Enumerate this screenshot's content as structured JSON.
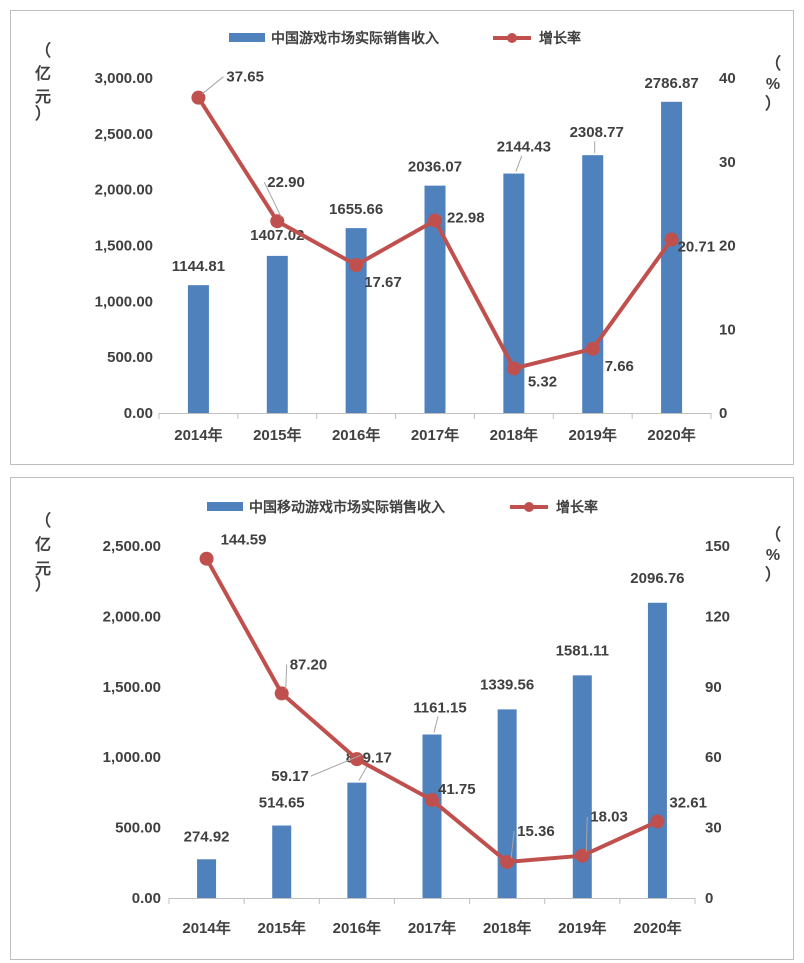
{
  "charts": [
    {
      "legend": {
        "bar_label": "中国游戏市场实际销售收入",
        "line_label": "增长率"
      },
      "left_unit": [
        "（",
        "亿",
        "元",
        "）"
      ],
      "right_unit": [
        "（",
        "%",
        "）"
      ]
    },
    {
      "legend": {
        "bar_label": "中国移动游戏市场实际销售收入",
        "line_label": "增长率"
      },
      "left_unit": [
        "（",
        "亿",
        "元",
        "）"
      ],
      "right_unit": [
        "（",
        "%",
        "）"
      ]
    }
  ],
  "chart_data": [
    {
      "type": "bar",
      "categories": [
        "2014年",
        "2015年",
        "2016年",
        "2017年",
        "2018年",
        "2019年",
        "2020年"
      ],
      "series": [
        {
          "name": "中国游戏市场实际销售收入",
          "type": "bar",
          "axis": "left",
          "values": [
            1144.81,
            1407.02,
            1655.66,
            2036.07,
            2144.43,
            2308.77,
            2786.87
          ],
          "labels": [
            "1144.81",
            "1407.02",
            "1655.66",
            "2036.07",
            "2144.43",
            "2308.77",
            "2786.87"
          ]
        },
        {
          "name": "增长率",
          "type": "line",
          "axis": "right",
          "values": [
            37.65,
            22.9,
            17.67,
            22.98,
            5.32,
            7.66,
            20.71
          ],
          "labels": [
            "37.65",
            "22.90",
            "17.67",
            "22.98",
            "5.32",
            "7.66",
            "20.71"
          ]
        }
      ],
      "left_axis": {
        "ylim": [
          0,
          3000
        ],
        "ticks": [
          "0.00",
          "500.00",
          "1,000.00",
          "1,500.00",
          "2,000.00",
          "2,500.00",
          "3,000.00"
        ]
      },
      "right_axis": {
        "ylim": [
          0,
          40
        ],
        "ticks": [
          "0",
          "10",
          "20",
          "30",
          "40"
        ]
      },
      "legend_position": "top",
      "grid": false,
      "colors": {
        "bar": "#4f81bd",
        "line": "#c0504d"
      }
    },
    {
      "type": "bar",
      "categories": [
        "2014年",
        "2015年",
        "2016年",
        "2017年",
        "2018年",
        "2019年",
        "2020年"
      ],
      "series": [
        {
          "name": "中国移动游戏市场实际销售收入",
          "type": "bar",
          "axis": "left",
          "values": [
            274.92,
            514.65,
            819.17,
            1161.15,
            1339.56,
            1581.11,
            2096.76
          ],
          "labels": [
            "274.92",
            "514.65",
            "819.17",
            "1161.15",
            "1339.56",
            "1581.11",
            "2096.76"
          ]
        },
        {
          "name": "增长率",
          "type": "line",
          "axis": "right",
          "values": [
            144.59,
            87.2,
            59.17,
            41.75,
            15.36,
            18.03,
            32.61
          ],
          "labels": [
            "144.59",
            "87.20",
            "59.17",
            "41.75",
            "15.36",
            "18.03",
            "32.61"
          ]
        }
      ],
      "left_axis": {
        "ylim": [
          0,
          2500
        ],
        "ticks": [
          "0.00",
          "500.00",
          "1,000.00",
          "1,500.00",
          "2,000.00",
          "2,500.00"
        ]
      },
      "right_axis": {
        "ylim": [
          0,
          150
        ],
        "ticks": [
          "0",
          "30",
          "60",
          "90",
          "120",
          "150"
        ]
      },
      "legend_position": "top",
      "grid": false,
      "colors": {
        "bar": "#4f81bd",
        "line": "#c0504d"
      }
    }
  ]
}
